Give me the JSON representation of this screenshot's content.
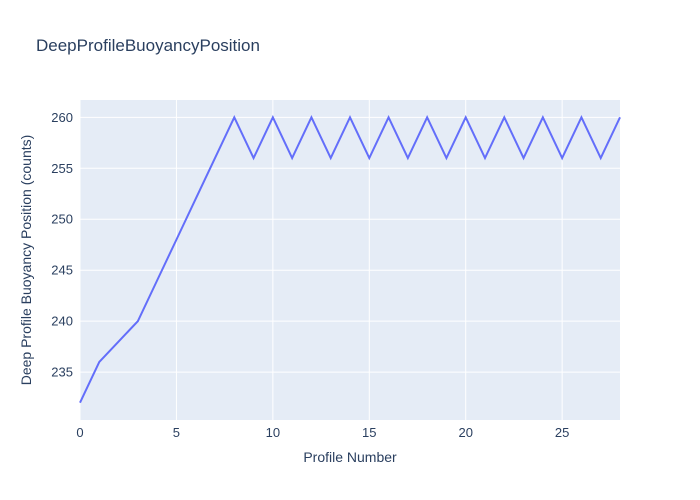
{
  "chart_data": {
    "type": "line",
    "title": "DeepProfileBuoyancyPosition",
    "xlabel": "Profile Number",
    "ylabel": "Deep Profile Buoyancy Position (counts)",
    "x": [
      0,
      1,
      2,
      3,
      4,
      5,
      6,
      7,
      8,
      9,
      10,
      11,
      12,
      13,
      14,
      15,
      16,
      17,
      18,
      19,
      20,
      21,
      22,
      23,
      24,
      25,
      26,
      27,
      28
    ],
    "values": [
      232,
      236,
      238,
      240,
      244,
      248,
      252,
      256,
      260,
      256,
      260,
      256,
      260,
      256,
      260,
      256,
      260,
      256,
      260,
      256,
      260,
      256,
      260,
      256,
      260,
      256,
      260,
      256,
      260
    ],
    "series_name": "DeepProfileBuoyancyPosition",
    "xticks": [
      0,
      5,
      10,
      15,
      20,
      25
    ],
    "yticks": [
      235,
      240,
      245,
      250,
      255,
      260
    ],
    "xlim": [
      0,
      28
    ],
    "ylim": [
      230.3,
      261.7
    ],
    "grid": "on",
    "legend": "none",
    "colors": {
      "line": "#636efa",
      "plot_background": "#e5ecf6",
      "gridline": "#ffffff",
      "text": "#2a3f5f"
    }
  }
}
